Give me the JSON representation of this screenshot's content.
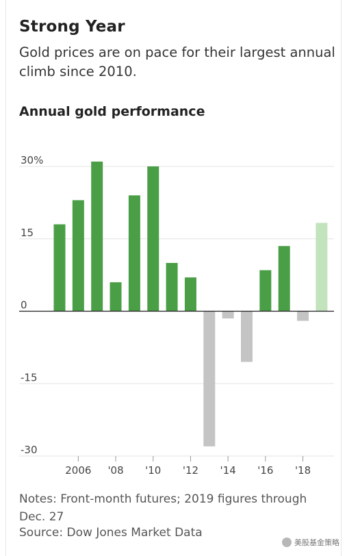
{
  "header": {
    "title": "Strong Year",
    "subtitle": "Gold prices are on pace for their largest annual climb since 2010."
  },
  "chart_data": {
    "type": "bar",
    "title": "Annual gold performance",
    "xlabel": "",
    "ylabel": "",
    "categories": [
      "2005",
      "2006",
      "2007",
      "2008",
      "2009",
      "2010",
      "2011",
      "2012",
      "2013",
      "2014",
      "2015",
      "2016",
      "2017",
      "2018",
      "2019"
    ],
    "values": [
      18,
      23,
      31,
      6,
      24,
      30,
      10,
      7,
      -28,
      -1.5,
      -10.5,
      8.5,
      13.5,
      -2,
      18.3
    ],
    "ylim": [
      -30,
      30
    ],
    "y_ticks": [
      {
        "value": 30,
        "label": "30%"
      },
      {
        "value": 15,
        "label": "15"
      },
      {
        "value": 0,
        "label": "0"
      },
      {
        "value": -15,
        "label": "-15"
      },
      {
        "value": -30,
        "label": "-30"
      }
    ],
    "x_ticks": [
      {
        "category": "2006",
        "label": "2006"
      },
      {
        "category": "2008",
        "label": "'08"
      },
      {
        "category": "2010",
        "label": "'10"
      },
      {
        "category": "2012",
        "label": "'12"
      },
      {
        "category": "2014",
        "label": "'14"
      },
      {
        "category": "2016",
        "label": "'16"
      },
      {
        "category": "2018",
        "label": "'18"
      }
    ],
    "grid": true,
    "colors": {
      "positive": "#4a9e45",
      "negative": "#c4c4c4",
      "partial_year": "#c3e3bd"
    },
    "partial_category": "2019"
  },
  "footer": {
    "notes": "Notes: Front-month futures; 2019 figures through Dec. 27",
    "source": "Source: Dow Jones Market Data",
    "watermark_text": "美股基金策略",
    "watermark_icon": "wechat-icon"
  }
}
